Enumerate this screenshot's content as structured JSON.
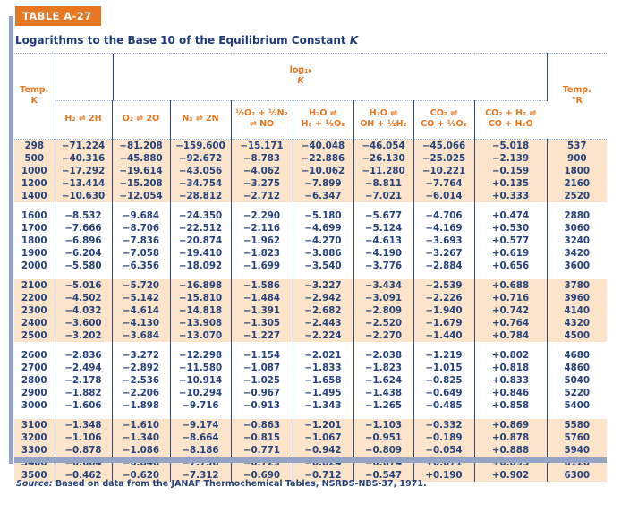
{
  "header": {
    "badge": "TABLE A-27",
    "title": "Logarithms to the Base 10 of the Equilibrium Constant",
    "title_symbol": "K"
  },
  "table": {
    "span_header": {
      "log_label": "log₁₀",
      "k_symbol": "K"
    },
    "columns": [
      {
        "label": "Temp.\nK"
      },
      {
        "label": "H₂ ⇌ 2H"
      },
      {
        "label": "O₂ ⇌ 2O"
      },
      {
        "label": "N₂ ⇌ 2N"
      },
      {
        "label": "½O₂ + ½N₂\n⇌ NO"
      },
      {
        "label": "H₂O ⇌\nH₂ + ½O₂"
      },
      {
        "label": "H₂O ⇌\nOH + ½H₂"
      },
      {
        "label": "CO₂ ⇌\nCO + ½O₂"
      },
      {
        "label": "CO₂ + H₂ ⇌\nCO + H₂O"
      },
      {
        "label": "Temp.\n°R"
      }
    ],
    "groups": [
      {
        "shaded": true,
        "rows": [
          [
            "298",
            "−71.224",
            "−81.208",
            "−159.600",
            "−15.171",
            "−40.048",
            "−46.054",
            "−45.066",
            "−5.018",
            "537"
          ],
          [
            "500",
            "−40.316",
            "−45.880",
            "−92.672",
            "−8.783",
            "−22.886",
            "−26.130",
            "−25.025",
            "−2.139",
            "900"
          ],
          [
            "1000",
            "−17.292",
            "−19.614",
            "−43.056",
            "−4.062",
            "−10.062",
            "−11.280",
            "−10.221",
            "−0.159",
            "1800"
          ],
          [
            "1200",
            "−13.414",
            "−15.208",
            "−34.754",
            "−3.275",
            "−7.899",
            "−8.811",
            "−7.764",
            "+0.135",
            "2160"
          ],
          [
            "1400",
            "−10.630",
            "−12.054",
            "−28.812",
            "−2.712",
            "−6.347",
            "−7.021",
            "−6.014",
            "+0.333",
            "2520"
          ]
        ]
      },
      {
        "shaded": false,
        "rows": [
          [
            "1600",
            "−8.532",
            "−9.684",
            "−24.350",
            "−2.290",
            "−5.180",
            "−5.677",
            "−4.706",
            "+0.474",
            "2880"
          ],
          [
            "1700",
            "−7.666",
            "−8.706",
            "−22.512",
            "−2.116",
            "−4.699",
            "−5.124",
            "−4.169",
            "+0.530",
            "3060"
          ],
          [
            "1800",
            "−6.896",
            "−7.836",
            "−20.874",
            "−1.962",
            "−4.270",
            "−4.613",
            "−3.693",
            "+0.577",
            "3240"
          ],
          [
            "1900",
            "−6.204",
            "−7.058",
            "−19.410",
            "−1.823",
            "−3.886",
            "−4.190",
            "−3.267",
            "+0.619",
            "3420"
          ],
          [
            "2000",
            "−5.580",
            "−6.356",
            "−18.092",
            "−1.699",
            "−3.540",
            "−3.776",
            "−2.884",
            "+0.656",
            "3600"
          ]
        ]
      },
      {
        "shaded": true,
        "rows": [
          [
            "2100",
            "−5.016",
            "−5.720",
            "−16.898",
            "−1.586",
            "−3.227",
            "−3.434",
            "−2.539",
            "+0.688",
            "3780"
          ],
          [
            "2200",
            "−4.502",
            "−5.142",
            "−15.810",
            "−1.484",
            "−2.942",
            "−3.091",
            "−2.226",
            "+0.716",
            "3960"
          ],
          [
            "2300",
            "−4.032",
            "−4.614",
            "−14.818",
            "−1.391",
            "−2.682",
            "−2.809",
            "−1.940",
            "+0.742",
            "4140"
          ],
          [
            "2400",
            "−3.600",
            "−4.130",
            "−13.908",
            "−1.305",
            "−2.443",
            "−2.520",
            "−1.679",
            "+0.764",
            "4320"
          ],
          [
            "2500",
            "−3.202",
            "−3.684",
            "−13.070",
            "−1.227",
            "−2.224",
            "−2.270",
            "−1.440",
            "+0.784",
            "4500"
          ]
        ]
      },
      {
        "shaded": false,
        "rows": [
          [
            "2600",
            "−2.836",
            "−3.272",
            "−12.298",
            "−1.154",
            "−2.021",
            "−2.038",
            "−1.219",
            "+0.802",
            "4680"
          ],
          [
            "2700",
            "−2.494",
            "−2.892",
            "−11.580",
            "−1.087",
            "−1.833",
            "−1.823",
            "−1.015",
            "+0.818",
            "4860"
          ],
          [
            "2800",
            "−2.178",
            "−2.536",
            "−10.914",
            "−1.025",
            "−1.658",
            "−1.624",
            "−0.825",
            "+0.833",
            "5040"
          ],
          [
            "2900",
            "−1.882",
            "−2.206",
            "−10.294",
            "−0.967",
            "−1.495",
            "−1.438",
            "−0.649",
            "+0.846",
            "5220"
          ],
          [
            "3000",
            "−1.606",
            "−1.898",
            "−9.716",
            "−0.913",
            "−1.343",
            "−1.265",
            "−0.485",
            "+0.858",
            "5400"
          ]
        ]
      },
      {
        "shaded": true,
        "rows": [
          [
            "3100",
            "−1.348",
            "−1.610",
            "−9.174",
            "−0.863",
            "−1.201",
            "−1.103",
            "−0.332",
            "+0.869",
            "5580"
          ],
          [
            "3200",
            "−1.106",
            "−1.340",
            "−8.664",
            "−0.815",
            "−1.067",
            "−0.951",
            "−0.189",
            "+0.878",
            "5760"
          ],
          [
            "3300",
            "−0.878",
            "−1.086",
            "−8.186",
            "−0.771",
            "−0.942",
            "−0.809",
            "−0.054",
            "+0.888",
            "5940"
          ],
          [
            "3400",
            "−0.664",
            "−0.846",
            "−7.736",
            "−0.729",
            "−0.824",
            "−0.674",
            "+0.071",
            "+0.895",
            "6120"
          ],
          [
            "3500",
            "−0.462",
            "−0.620",
            "−7.312",
            "−0.690",
            "−0.712",
            "−0.547",
            "+0.190",
            "+0.902",
            "6300"
          ]
        ]
      }
    ]
  },
  "footer": {
    "source_label": "Source:",
    "source_text": "Based on data from the JANAF Thermochemical Tables, NSRDS-NBS-37, 1971."
  },
  "colors": {
    "accent_orange": "#e87722",
    "text_navy": "#26427c",
    "band_peach": "#fbe4ca",
    "bar_slate": "#92a5c4",
    "dotted_rule": "#a7b8cd"
  }
}
